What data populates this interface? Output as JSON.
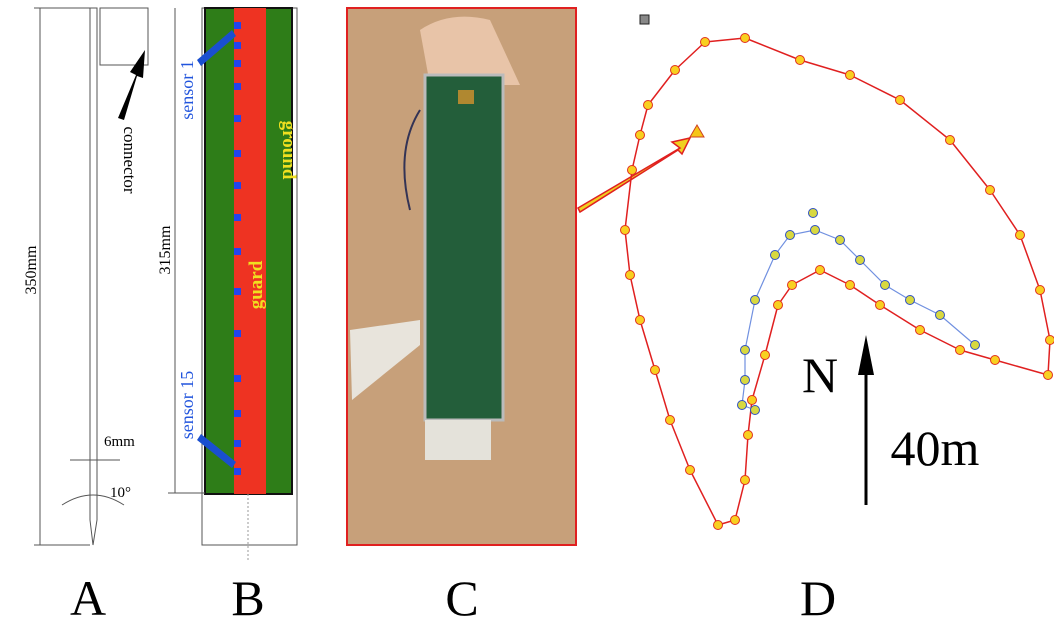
{
  "panel_a": {
    "label": "A",
    "connector": "connector",
    "length": "350mm",
    "width": "6mm",
    "angle": "10°"
  },
  "panel_b": {
    "label": "B",
    "length": "315mm",
    "first_sensor": "sensor 1",
    "last_sensor": "sensor 15",
    "ground": "ground",
    "guard": "guard"
  },
  "panel_c": {
    "label": "C"
  },
  "panel_d": {
    "label": "D",
    "north": "N",
    "scale": "40m"
  }
}
